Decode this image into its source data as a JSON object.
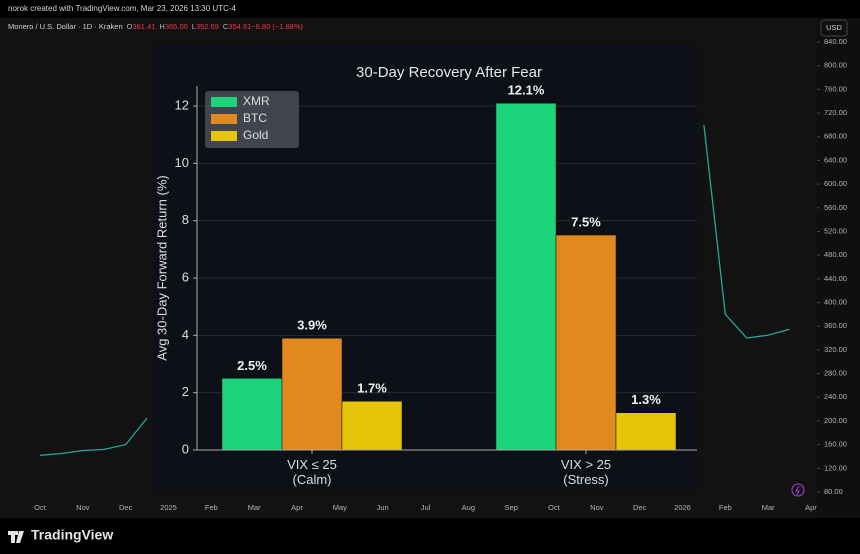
{
  "header": {
    "credit": "norok created with TradingView.com, Mar 23, 2026 13:30 UTC-4",
    "symbol": "Monero / U.S. Dollar · 1D · Kraken",
    "ohlc": [
      {
        "key": "O",
        "value": "361.41"
      },
      {
        "key": "H",
        "value": "365.00"
      },
      {
        "key": "L",
        "value": "352.69"
      },
      {
        "key": "C",
        "value": "354.61"
      },
      {
        "key": "",
        "value": "−6.80 (−1.88%)"
      }
    ],
    "currency": "USD",
    "brand": "TradingView"
  },
  "chart_data": [
    {
      "type": "line",
      "color": "#26a69a",
      "categories": [
        "Oct",
        null,
        "Nov",
        null,
        "Dec",
        null,
        "2025",
        null,
        "Feb",
        null,
        "Mar",
        null,
        "Apr",
        null,
        "May",
        null,
        "Jun",
        null,
        "Jul",
        null,
        "Aug",
        null,
        "Sep",
        null,
        "Oct",
        null,
        "Nov",
        null,
        "Dec",
        null,
        "2026",
        null,
        "Feb",
        null,
        "Mar",
        null,
        "Apr"
      ],
      "values": [
        142,
        145,
        150,
        152,
        160,
        205,
        null,
        null,
        null,
        null,
        null,
        null,
        null,
        null,
        null,
        null,
        null,
        null,
        null,
        null,
        null,
        null,
        null,
        null,
        null,
        null,
        null,
        null,
        null,
        null,
        null,
        700,
        380,
        340,
        345,
        355,
        null
      ],
      "ylim": [
        80,
        840
      ],
      "yticks": [
        {
          "value": 80,
          "label": "80.00"
        },
        {
          "value": 120,
          "label": "120.00"
        },
        {
          "value": 160,
          "label": "160.00"
        },
        {
          "value": 200,
          "label": "200.00"
        },
        {
          "value": 240,
          "label": "240.00"
        },
        {
          "value": 280,
          "label": "280.00"
        },
        {
          "value": 320,
          "label": "320.00"
        },
        {
          "value": 360,
          "label": "360.00"
        },
        {
          "value": 400,
          "label": "400.00"
        },
        {
          "value": 440,
          "label": "440.00"
        },
        {
          "value": 480,
          "label": "480.00"
        },
        {
          "value": 520,
          "label": "520.00"
        },
        {
          "value": 560,
          "label": "560.00"
        },
        {
          "value": 600,
          "label": "600.00"
        },
        {
          "value": 640,
          "label": "640.00"
        },
        {
          "value": 680,
          "label": "680.00"
        },
        {
          "value": 720,
          "label": "720.00"
        },
        {
          "value": 760,
          "label": "760.00"
        },
        {
          "value": 800,
          "label": "800.00"
        },
        {
          "value": 840,
          "label": "840.00"
        }
      ]
    },
    {
      "type": "bar",
      "title": "30-Day Recovery After Fear",
      "y_label": "Avg 30-Day Forward Return (%)",
      "categories": [
        "VIX ≤ 25\n(Calm)",
        "VIX > 25\n(Stress)"
      ],
      "series": [
        {
          "name": "XMR",
          "color": "#1ed47a",
          "values": [
            2.5,
            12.1
          ],
          "value_labels": [
            "2.5%",
            "12.1%"
          ]
        },
        {
          "name": "BTC",
          "color": "#e0891f",
          "values": [
            3.9,
            7.5
          ],
          "value_labels": [
            "3.9%",
            "7.5%"
          ]
        },
        {
          "name": "Gold",
          "color": "#e6c40a",
          "values": [
            1.7,
            1.3
          ],
          "value_labels": [
            "1.7%",
            "1.3%"
          ]
        }
      ],
      "ylim": [
        0,
        12.7
      ],
      "yticks": [
        0,
        2,
        4,
        6,
        8,
        10,
        12
      ],
      "grid": true,
      "legend": "upper-left"
    }
  ]
}
